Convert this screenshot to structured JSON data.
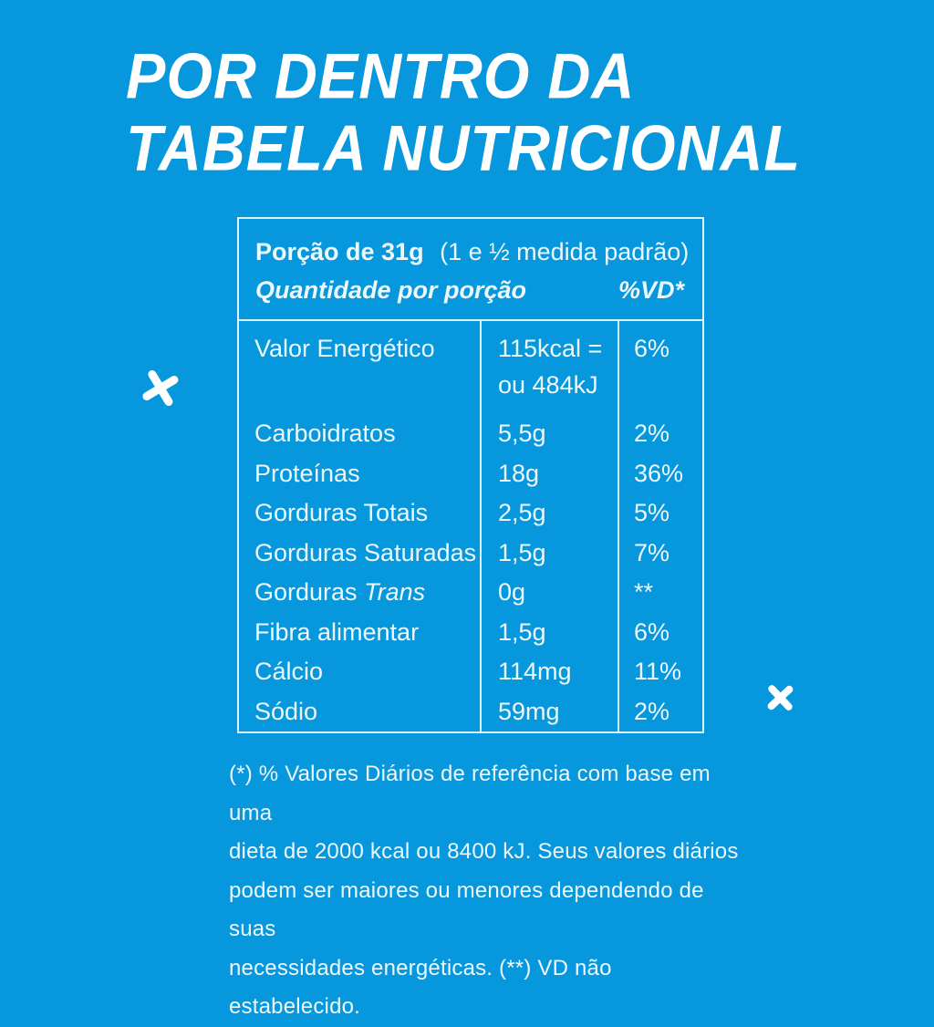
{
  "page": {
    "colors": {
      "bg": "#0697DC",
      "ink": "#EDF8FD",
      "line": "#DCF1FA",
      "title": "#FFFFFF"
    }
  },
  "title": {
    "line1": "POR DENTRO DA",
    "line2": "TABELA NUTRICIONAL"
  },
  "decorations": {
    "left_icon": "x-mark-icon",
    "right_icon": "x-mark-icon"
  },
  "nutrition_table": {
    "serving": "Porção de 31g",
    "serving_note": "(1 e ½ medida padrão)",
    "column_header_left": "Quantidade por porção",
    "column_header_right": "%VD*",
    "rows": [
      {
        "label": "Valor Energético",
        "value": "115kcal =",
        "value_line2": "ou 484kJ",
        "vd": "6%"
      },
      {
        "label": "Carboidratos",
        "value": "5,5g",
        "vd": "2%"
      },
      {
        "label": "Proteínas",
        "value": "18g",
        "vd": "36%"
      },
      {
        "label": "Gorduras Totais",
        "value": "2,5g",
        "vd": "5%"
      },
      {
        "label": "Gorduras Saturadas",
        "value": "1,5g",
        "vd": "7%"
      },
      {
        "label": "Gorduras",
        "label_em": "Trans",
        "value": "0g",
        "vd": "**"
      },
      {
        "label": "Fibra alimentar",
        "value": "1,5g",
        "vd": "6%"
      },
      {
        "label": "Cálcio",
        "value": "114mg",
        "vd": "11%"
      },
      {
        "label": "Sódio",
        "value": "59mg",
        "vd": "2%"
      }
    ]
  },
  "footnote": {
    "line1": "(*) % Valores Diários de referência com base em uma",
    "line2": "dieta de 2000 kcal ou 8400 kJ. Seus valores diários",
    "line3": "podem ser maiores ou menores dependendo de suas",
    "line4": "necessidades energéticas. (**) VD não estabelecido."
  }
}
